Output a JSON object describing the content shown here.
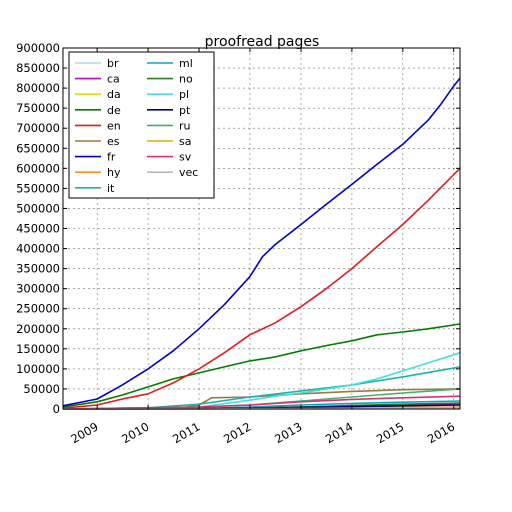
{
  "chart_data": {
    "type": "line",
    "title": "proofread pages",
    "xlabel": "",
    "ylabel": "",
    "xlim": [
      "2008-05-01",
      "2016-02-15"
    ],
    "ylim": [
      0,
      900000
    ],
    "grid": true,
    "legend_placement": "top-left",
    "yticks": [
      0,
      50000,
      100000,
      150000,
      200000,
      250000,
      300000,
      350000,
      400000,
      450000,
      500000,
      550000,
      600000,
      650000,
      700000,
      750000,
      800000,
      850000,
      900000
    ],
    "ytick_labels": [
      "0",
      "50000",
      "100000",
      "150000",
      "200000",
      "250000",
      "300000",
      "350000",
      "400000",
      "450000",
      "500000",
      "550000",
      "600000",
      "650000",
      "700000",
      "750000",
      "800000",
      "850000",
      "900000"
    ],
    "xticks": [
      "2009-01-01",
      "2010-01-01",
      "2011-01-01",
      "2012-01-01",
      "2013-01-01",
      "2014-01-01",
      "2015-01-01",
      "2016-01-01"
    ],
    "xtick_labels": [
      "2009",
      "2010",
      "2011",
      "2012",
      "2013",
      "2014",
      "2015",
      "2016"
    ],
    "series": [
      {
        "name": "br",
        "color": "#add8e6",
        "x": [
          "2008-05-01",
          "2011-01-01",
          "2013-01-01",
          "2016-02-15"
        ],
        "y": [
          0,
          200,
          1500,
          4000
        ]
      },
      {
        "name": "ca",
        "color": "#cc00cc",
        "x": [
          "2008-05-01",
          "2011-01-01",
          "2013-01-01",
          "2016-02-15"
        ],
        "y": [
          0,
          1000,
          5000,
          14000
        ]
      },
      {
        "name": "da",
        "color": "#dddd00",
        "x": [
          "2008-05-01",
          "2011-01-01",
          "2013-01-01",
          "2016-02-15"
        ],
        "y": [
          0,
          200,
          1000,
          3000
        ]
      },
      {
        "name": "de",
        "color": "#008000",
        "x": [
          "2008-05-01",
          "2009-01-01",
          "2009-07-01",
          "2010-01-01",
          "2010-07-01",
          "2011-01-01",
          "2011-07-01",
          "2012-01-01",
          "2012-07-01",
          "2013-01-01",
          "2013-07-01",
          "2014-01-01",
          "2014-07-01",
          "2015-01-01",
          "2015-07-01",
          "2016-02-15"
        ],
        "y": [
          5000,
          18000,
          35000,
          55000,
          75000,
          90000,
          105000,
          120000,
          130000,
          145000,
          158000,
          170000,
          185000,
          192000,
          200000,
          212000
        ]
      },
      {
        "name": "en",
        "color": "#e41a1c",
        "x": [
          "2008-05-01",
          "2009-01-01",
          "2009-07-01",
          "2010-01-01",
          "2010-07-01",
          "2011-01-01",
          "2011-07-01",
          "2012-01-01",
          "2012-07-01",
          "2013-01-01",
          "2013-07-01",
          "2014-01-01",
          "2014-07-01",
          "2015-01-01",
          "2015-07-01",
          "2016-02-15"
        ],
        "y": [
          2000,
          10000,
          25000,
          38000,
          65000,
          100000,
          140000,
          185000,
          215000,
          255000,
          300000,
          350000,
          405000,
          460000,
          520000,
          600000
        ]
      },
      {
        "name": "es",
        "color": "#a0783c",
        "x": [
          "2008-05-01",
          "2009-01-01",
          "2010-01-01",
          "2010-09-01",
          "2011-01-01",
          "2011-04-01",
          "2012-01-01",
          "2013-01-01",
          "2014-01-01",
          "2015-01-01",
          "2016-02-15"
        ],
        "y": [
          0,
          0,
          1000,
          3000,
          10000,
          28000,
          30000,
          38000,
          44000,
          48000,
          50000
        ]
      },
      {
        "name": "fr",
        "color": "#0000cc",
        "x": [
          "2008-05-01",
          "2009-01-01",
          "2009-07-01",
          "2010-01-01",
          "2010-07-01",
          "2011-01-01",
          "2011-07-01",
          "2012-01-01",
          "2012-04-01",
          "2012-07-01",
          "2013-01-01",
          "2013-07-01",
          "2014-01-01",
          "2014-07-01",
          "2015-01-01",
          "2015-07-01",
          "2015-10-01",
          "2016-01-01",
          "2016-02-15"
        ],
        "y": [
          8000,
          25000,
          60000,
          100000,
          145000,
          200000,
          260000,
          330000,
          380000,
          410000,
          460000,
          510000,
          560000,
          610000,
          660000,
          720000,
          760000,
          805000,
          825000
        ]
      },
      {
        "name": "hy",
        "color": "#ff8c1a",
        "x": [
          "2008-05-01",
          "2011-01-01",
          "2013-01-01",
          "2016-02-15"
        ],
        "y": [
          0,
          500,
          2000,
          5000
        ]
      },
      {
        "name": "it",
        "color": "#20b2aa",
        "x": [
          "2008-05-01",
          "2009-01-01",
          "2010-01-01",
          "2011-01-01",
          "2012-01-01",
          "2013-01-01",
          "2014-01-01",
          "2015-01-01",
          "2016-02-15"
        ],
        "y": [
          0,
          1000,
          3000,
          12000,
          30000,
          45000,
          60000,
          80000,
          105000
        ]
      },
      {
        "name": "ml",
        "color": "#00a8cc",
        "x": [
          "2008-05-01",
          "2011-01-01",
          "2012-01-01",
          "2013-01-01",
          "2014-01-01",
          "2015-01-01",
          "2016-02-15"
        ],
        "y": [
          0,
          1000,
          5000,
          10000,
          14000,
          17000,
          20000
        ]
      },
      {
        "name": "no",
        "color": "#2e7d1a",
        "x": [
          "2008-05-01",
          "2011-01-01",
          "2012-01-01",
          "2013-01-01",
          "2014-01-01",
          "2015-01-01",
          "2016-02-15"
        ],
        "y": [
          0,
          500,
          2000,
          5000,
          9000,
          12000,
          15000
        ]
      },
      {
        "name": "pl",
        "color": "#40e0e0",
        "x": [
          "2008-05-01",
          "2010-01-01",
          "2011-01-01",
          "2012-01-01",
          "2012-07-01",
          "2013-01-01",
          "2014-01-01",
          "2014-07-01",
          "2015-01-01",
          "2015-07-01",
          "2016-02-15"
        ],
        "y": [
          0,
          1000,
          5000,
          22000,
          32000,
          40000,
          60000,
          75000,
          95000,
          115000,
          140000
        ]
      },
      {
        "name": "pt",
        "color": "#000080",
        "x": [
          "2008-05-01",
          "2011-01-01",
          "2012-01-01",
          "2013-01-01",
          "2014-01-01",
          "2015-01-01",
          "2016-02-15"
        ],
        "y": [
          0,
          1000,
          2000,
          4000,
          6000,
          8000,
          10000
        ]
      },
      {
        "name": "ru",
        "color": "#3cb371",
        "x": [
          "2008-05-01",
          "2011-01-01",
          "2012-01-01",
          "2013-01-01",
          "2014-01-01",
          "2015-01-01",
          "2016-02-15"
        ],
        "y": [
          0,
          5000,
          10000,
          20000,
          30000,
          40000,
          50000
        ]
      },
      {
        "name": "sa",
        "color": "#d4b000",
        "x": [
          "2008-05-01",
          "2012-01-01",
          "2016-02-15"
        ],
        "y": [
          0,
          100,
          400
        ]
      },
      {
        "name": "sv",
        "color": "#e0306a",
        "x": [
          "2008-05-01",
          "2011-01-01",
          "2012-01-01",
          "2013-01-01",
          "2014-01-01",
          "2015-01-01",
          "2016-02-15"
        ],
        "y": [
          0,
          5000,
          10000,
          18000,
          24000,
          28000,
          32000
        ]
      },
      {
        "name": "vec",
        "color": "#bbbbbb",
        "x": [
          "2008-05-01",
          "2011-01-01",
          "2013-01-01",
          "2016-02-15"
        ],
        "y": [
          0,
          300,
          1000,
          2500
        ]
      }
    ]
  }
}
